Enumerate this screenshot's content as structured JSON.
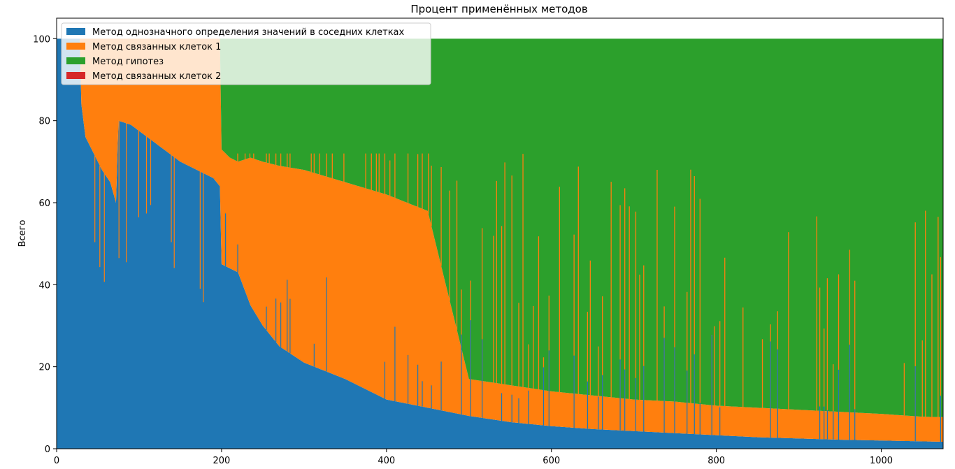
{
  "chart_data": {
    "type": "area",
    "stacked": true,
    "title": "Процент применённых методов",
    "xlabel": "",
    "ylabel": "Всего",
    "xlim": [
      0,
      1075
    ],
    "ylim": [
      0,
      105
    ],
    "xticks": [
      0,
      200,
      400,
      600,
      800,
      1000
    ],
    "yticks": [
      0,
      20,
      40,
      60,
      80,
      100
    ],
    "grid": false,
    "legend_position": "top-left",
    "series": [
      {
        "name": "Метод однозначного определения значений в соседних клетках",
        "color": "#1f77b4",
        "points": [
          [
            0,
            100
          ],
          [
            28,
            100
          ],
          [
            30,
            84
          ],
          [
            35,
            76
          ],
          [
            45,
            72
          ],
          [
            55,
            68
          ],
          [
            65,
            65
          ],
          [
            72,
            60
          ],
          [
            75,
            80
          ],
          [
            90,
            79
          ],
          [
            110,
            76
          ],
          [
            130,
            73
          ],
          [
            150,
            70
          ],
          [
            170,
            68
          ],
          [
            190,
            66
          ],
          [
            198,
            64
          ],
          [
            200,
            45
          ],
          [
            210,
            44
          ],
          [
            220,
            43
          ],
          [
            235,
            35
          ],
          [
            250,
            30
          ],
          [
            270,
            25
          ],
          [
            300,
            21
          ],
          [
            350,
            17
          ],
          [
            400,
            12
          ],
          [
            450,
            10
          ],
          [
            500,
            8
          ],
          [
            550,
            6.5
          ],
          [
            600,
            5.5
          ],
          [
            650,
            4.8
          ],
          [
            700,
            4.3
          ],
          [
            750,
            3.8
          ],
          [
            800,
            3.3
          ],
          [
            850,
            2.8
          ],
          [
            900,
            2.5
          ],
          [
            950,
            2.2
          ],
          [
            1000,
            2.0
          ],
          [
            1050,
            1.8
          ],
          [
            1075,
            1.7
          ]
        ]
      },
      {
        "name": "Метод связанных клеток 1",
        "color": "#ff7f0e",
        "points": [
          [
            0,
            0
          ],
          [
            28,
            0
          ],
          [
            30,
            16
          ],
          [
            35,
            24
          ],
          [
            45,
            28
          ],
          [
            55,
            32
          ],
          [
            65,
            35
          ],
          [
            72,
            40
          ],
          [
            75,
            20
          ],
          [
            90,
            21
          ],
          [
            110,
            24
          ],
          [
            130,
            27
          ],
          [
            150,
            30
          ],
          [
            170,
            32
          ],
          [
            190,
            34
          ],
          [
            198,
            36
          ],
          [
            200,
            28
          ],
          [
            210,
            27
          ],
          [
            220,
            27
          ],
          [
            235,
            36
          ],
          [
            250,
            40
          ],
          [
            270,
            44
          ],
          [
            300,
            47
          ],
          [
            350,
            48
          ],
          [
            400,
            50
          ],
          [
            450,
            48
          ],
          [
            500,
            9
          ],
          [
            550,
            9
          ],
          [
            600,
            8.5
          ],
          [
            650,
            8.2
          ],
          [
            700,
            7.7
          ],
          [
            750,
            7.7
          ],
          [
            800,
            7.2
          ],
          [
            850,
            7.2
          ],
          [
            900,
            7.0
          ],
          [
            950,
            6.8
          ],
          [
            1000,
            6.5
          ],
          [
            1050,
            6.0
          ],
          [
            1075,
            6.0
          ]
        ]
      },
      {
        "name": "Метод гипотез",
        "color": "#2ca02c",
        "points": [
          [
            0,
            0
          ],
          [
            198,
            0
          ],
          [
            200,
            27
          ],
          [
            210,
            29
          ],
          [
            220,
            30
          ],
          [
            235,
            29
          ],
          [
            250,
            30
          ],
          [
            270,
            31
          ],
          [
            300,
            32
          ],
          [
            350,
            35
          ],
          [
            400,
            38
          ],
          [
            450,
            42
          ],
          [
            500,
            83
          ],
          [
            550,
            84.5
          ],
          [
            600,
            86
          ],
          [
            650,
            87
          ],
          [
            700,
            88
          ],
          [
            750,
            88.5
          ],
          [
            800,
            89.5
          ],
          [
            850,
            90
          ],
          [
            900,
            90.5
          ],
          [
            950,
            91
          ],
          [
            1000,
            91.5
          ],
          [
            1050,
            92.2
          ],
          [
            1075,
            92.3
          ]
        ]
      },
      {
        "name": "Метод связанных клеток 2",
        "color": "#d62728",
        "points": [
          [
            0,
            0
          ],
          [
            1075,
            0
          ]
        ]
      }
    ]
  }
}
